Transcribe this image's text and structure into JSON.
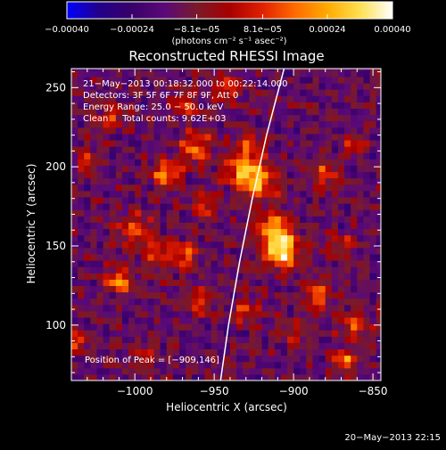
{
  "chart_data": {
    "type": "heatmap",
    "title": "Reconstructed RHESSI Image",
    "xlabel": "Heliocentric X (arcsec)",
    "ylabel": "Heliocentric Y (arcsec)",
    "xlim": [
      -1040,
      -845
    ],
    "ylim": [
      65,
      262
    ],
    "x_ticks": [
      -1000,
      -950,
      -900,
      -850
    ],
    "x_tick_labels": [
      "−1000",
      "−950",
      "−900",
      "−850"
    ],
    "y_ticks": [
      100,
      150,
      200,
      250
    ],
    "y_tick_labels": [
      "100",
      "150",
      "200",
      "250"
    ],
    "colorbar": {
      "range": [
        -0.0004,
        0.0004
      ],
      "tick_values": [
        -0.0004,
        -0.00024,
        -8.1e-05,
        8.1e-05,
        0.00024,
        0.0004
      ],
      "tick_labels": [
        "−0.00040",
        "−0.00024",
        "−8.1e−05",
        "8.1e−05",
        "0.00024",
        "0.00040"
      ],
      "unit_label": "(photons cm⁻² s⁻¹ asec⁻²)",
      "colormap": [
        "#0000ff",
        "#220088",
        "#3a006a",
        "#5a0a78",
        "#7a1a2a",
        "#a80000",
        "#e02000",
        "#ff6a00",
        "#ffaa00",
        "#ffe050",
        "#ffffff"
      ]
    },
    "grid": false,
    "info_lines": [
      "21−May−2013 00:18:32.000 to 00:22:14.000",
      "Detectors: 3F 5F 6F 7F 8F 9F, Att 0",
      "Energy Range: 25.0 − 50.0 keV",
      "Clean     Total counts: 9.62E+03"
    ],
    "peak_annotation": "Position of Peak = [−909,146]",
    "peak_position": [
      -909,
      146
    ],
    "limb_curve": [
      [
        -946,
        65
      ],
      [
        -941,
        100
      ],
      [
        -934,
        140
      ],
      [
        -926,
        180
      ],
      [
        -917,
        220
      ],
      [
        -906,
        262
      ]
    ],
    "sources": [
      {
        "x": -907,
        "y": 146,
        "amp": 1.0,
        "sigma": 7
      },
      {
        "x": -912,
        "y": 160,
        "amp": 0.8,
        "sigma": 8
      },
      {
        "x": -922,
        "y": 192,
        "amp": 0.75,
        "sigma": 8
      },
      {
        "x": -934,
        "y": 198,
        "amp": 0.65,
        "sigma": 7
      },
      {
        "x": -928,
        "y": 215,
        "amp": 0.55,
        "sigma": 6
      },
      {
        "x": -980,
        "y": 196,
        "amp": 0.8,
        "sigma": 6
      },
      {
        "x": -962,
        "y": 212,
        "amp": 0.65,
        "sigma": 7
      },
      {
        "x": -1000,
        "y": 160,
        "amp": 0.5,
        "sigma": 8
      },
      {
        "x": -985,
        "y": 145,
        "amp": 0.55,
        "sigma": 6
      },
      {
        "x": -1010,
        "y": 128,
        "amp": 0.75,
        "sigma": 5
      },
      {
        "x": -968,
        "y": 145,
        "amp": 0.5,
        "sigma": 6
      },
      {
        "x": -958,
        "y": 115,
        "amp": 0.4,
        "sigma": 6
      },
      {
        "x": -1015,
        "y": 232,
        "amp": 0.5,
        "sigma": 6
      },
      {
        "x": -968,
        "y": 240,
        "amp": 0.45,
        "sigma": 6
      },
      {
        "x": -955,
        "y": 175,
        "amp": 0.45,
        "sigma": 6
      },
      {
        "x": -880,
        "y": 195,
        "amp": 0.5,
        "sigma": 6
      },
      {
        "x": -862,
        "y": 215,
        "amp": 0.45,
        "sigma": 5
      },
      {
        "x": -870,
        "y": 150,
        "amp": 0.4,
        "sigma": 6
      },
      {
        "x": -885,
        "y": 118,
        "amp": 0.55,
        "sigma": 6
      },
      {
        "x": -862,
        "y": 100,
        "amp": 0.55,
        "sigma": 6
      },
      {
        "x": -868,
        "y": 78,
        "amp": 0.7,
        "sigma": 5
      },
      {
        "x": -930,
        "y": 110,
        "amp": 0.45,
        "sigma": 6
      },
      {
        "x": -900,
        "y": 95,
        "amp": 0.35,
        "sigma": 6
      },
      {
        "x": -995,
        "y": 80,
        "amp": 0.35,
        "sigma": 6
      },
      {
        "x": -1036,
        "y": 90,
        "amp": 0.6,
        "sigma": 4
      },
      {
        "x": -1030,
        "y": 205,
        "amp": 0.45,
        "sigma": 5
      },
      {
        "x": -942,
        "y": 250,
        "amp": 0.5,
        "sigma": 6
      }
    ]
  },
  "footer": {
    "timestamp": "20−May−2013 22:15"
  }
}
